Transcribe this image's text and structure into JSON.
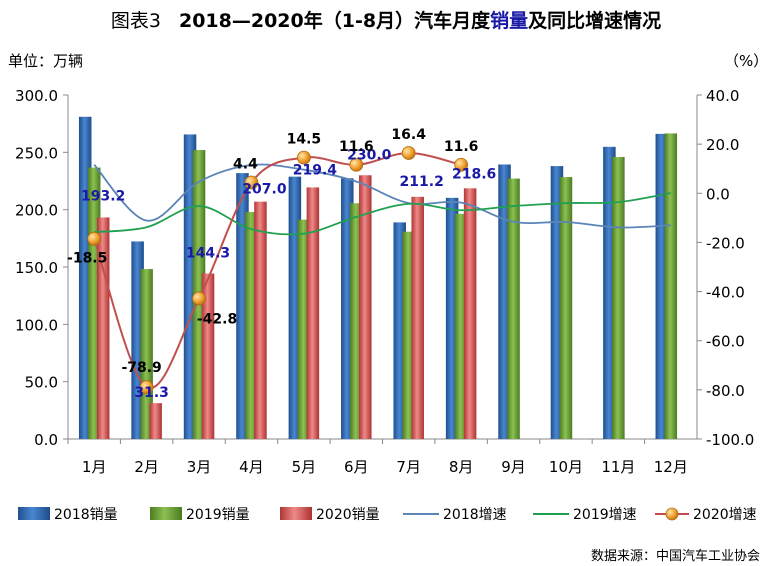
{
  "header": {
    "prefix": "图表3",
    "title_a": "2018—2020年（1-8月）汽车月度",
    "title_hl": "销量",
    "title_b": "及同比增速情况",
    "unit_left": "单位：万辆",
    "unit_right": "（%）",
    "source": "数据来源：中国汽车工业协会"
  },
  "chart_data": {
    "type": "bar+line",
    "categories": [
      "1月",
      "2月",
      "3月",
      "4月",
      "5月",
      "6月",
      "7月",
      "8月",
      "9月",
      "10月",
      "11月",
      "12月"
    ],
    "y_left": {
      "min": 0,
      "max": 300,
      "step": 50
    },
    "y_right": {
      "min": -100,
      "max": 40,
      "step": 20
    },
    "grid": false,
    "legend": "bottom",
    "bar_series": [
      {
        "name": "2018销量",
        "color": "#2e6cb8",
        "values": [
          281.0,
          172.3,
          265.6,
          231.9,
          228.8,
          227.4,
          188.9,
          210.3,
          239.4,
          238.0,
          254.8,
          266.1
        ]
      },
      {
        "name": "2019销量",
        "color": "#6da53a",
        "values": [
          236.7,
          148.2,
          252.0,
          198.0,
          191.3,
          205.6,
          180.8,
          196.4,
          227.1,
          228.4,
          245.9,
          266.5
        ]
      },
      {
        "name": "2020销量",
        "color": "#d94b4b",
        "values": [
          193.2,
          31.3,
          144.3,
          207.0,
          219.4,
          230.0,
          211.2,
          218.6,
          null,
          null,
          null,
          null
        ]
      }
    ],
    "bar_labels_2020": [
      "193.2",
      "31.3",
      "144.3",
      "207.0",
      "219.4",
      "230.0",
      "211.2",
      "218.6"
    ],
    "line_series": [
      {
        "name": "2018增速",
        "color": "#5b84b8",
        "values": [
          11.6,
          -11.1,
          4.7,
          11.5,
          9.6,
          4.8,
          -4.0,
          -3.8,
          -11.6,
          -11.7,
          -13.9,
          -13.0
        ]
      },
      {
        "name": "2019增速",
        "color": "#20a050",
        "values": [
          -15.8,
          -13.8,
          -5.2,
          -14.6,
          -16.4,
          -9.6,
          -4.3,
          -6.9,
          -5.2,
          -4.0,
          -3.6,
          0.1
        ]
      },
      {
        "name": "2020增速",
        "color": "#c0504d",
        "marker": "#f0a030",
        "values": [
          -18.5,
          -78.9,
          -42.8,
          4.4,
          14.5,
          11.6,
          16.4,
          11.6,
          null,
          null,
          null,
          null
        ]
      }
    ],
    "line_labels_2020": [
      "-18.5",
      "-78.9",
      "-42.8",
      "4.4",
      "14.5",
      "11.6",
      "16.4",
      "11.6"
    ]
  }
}
